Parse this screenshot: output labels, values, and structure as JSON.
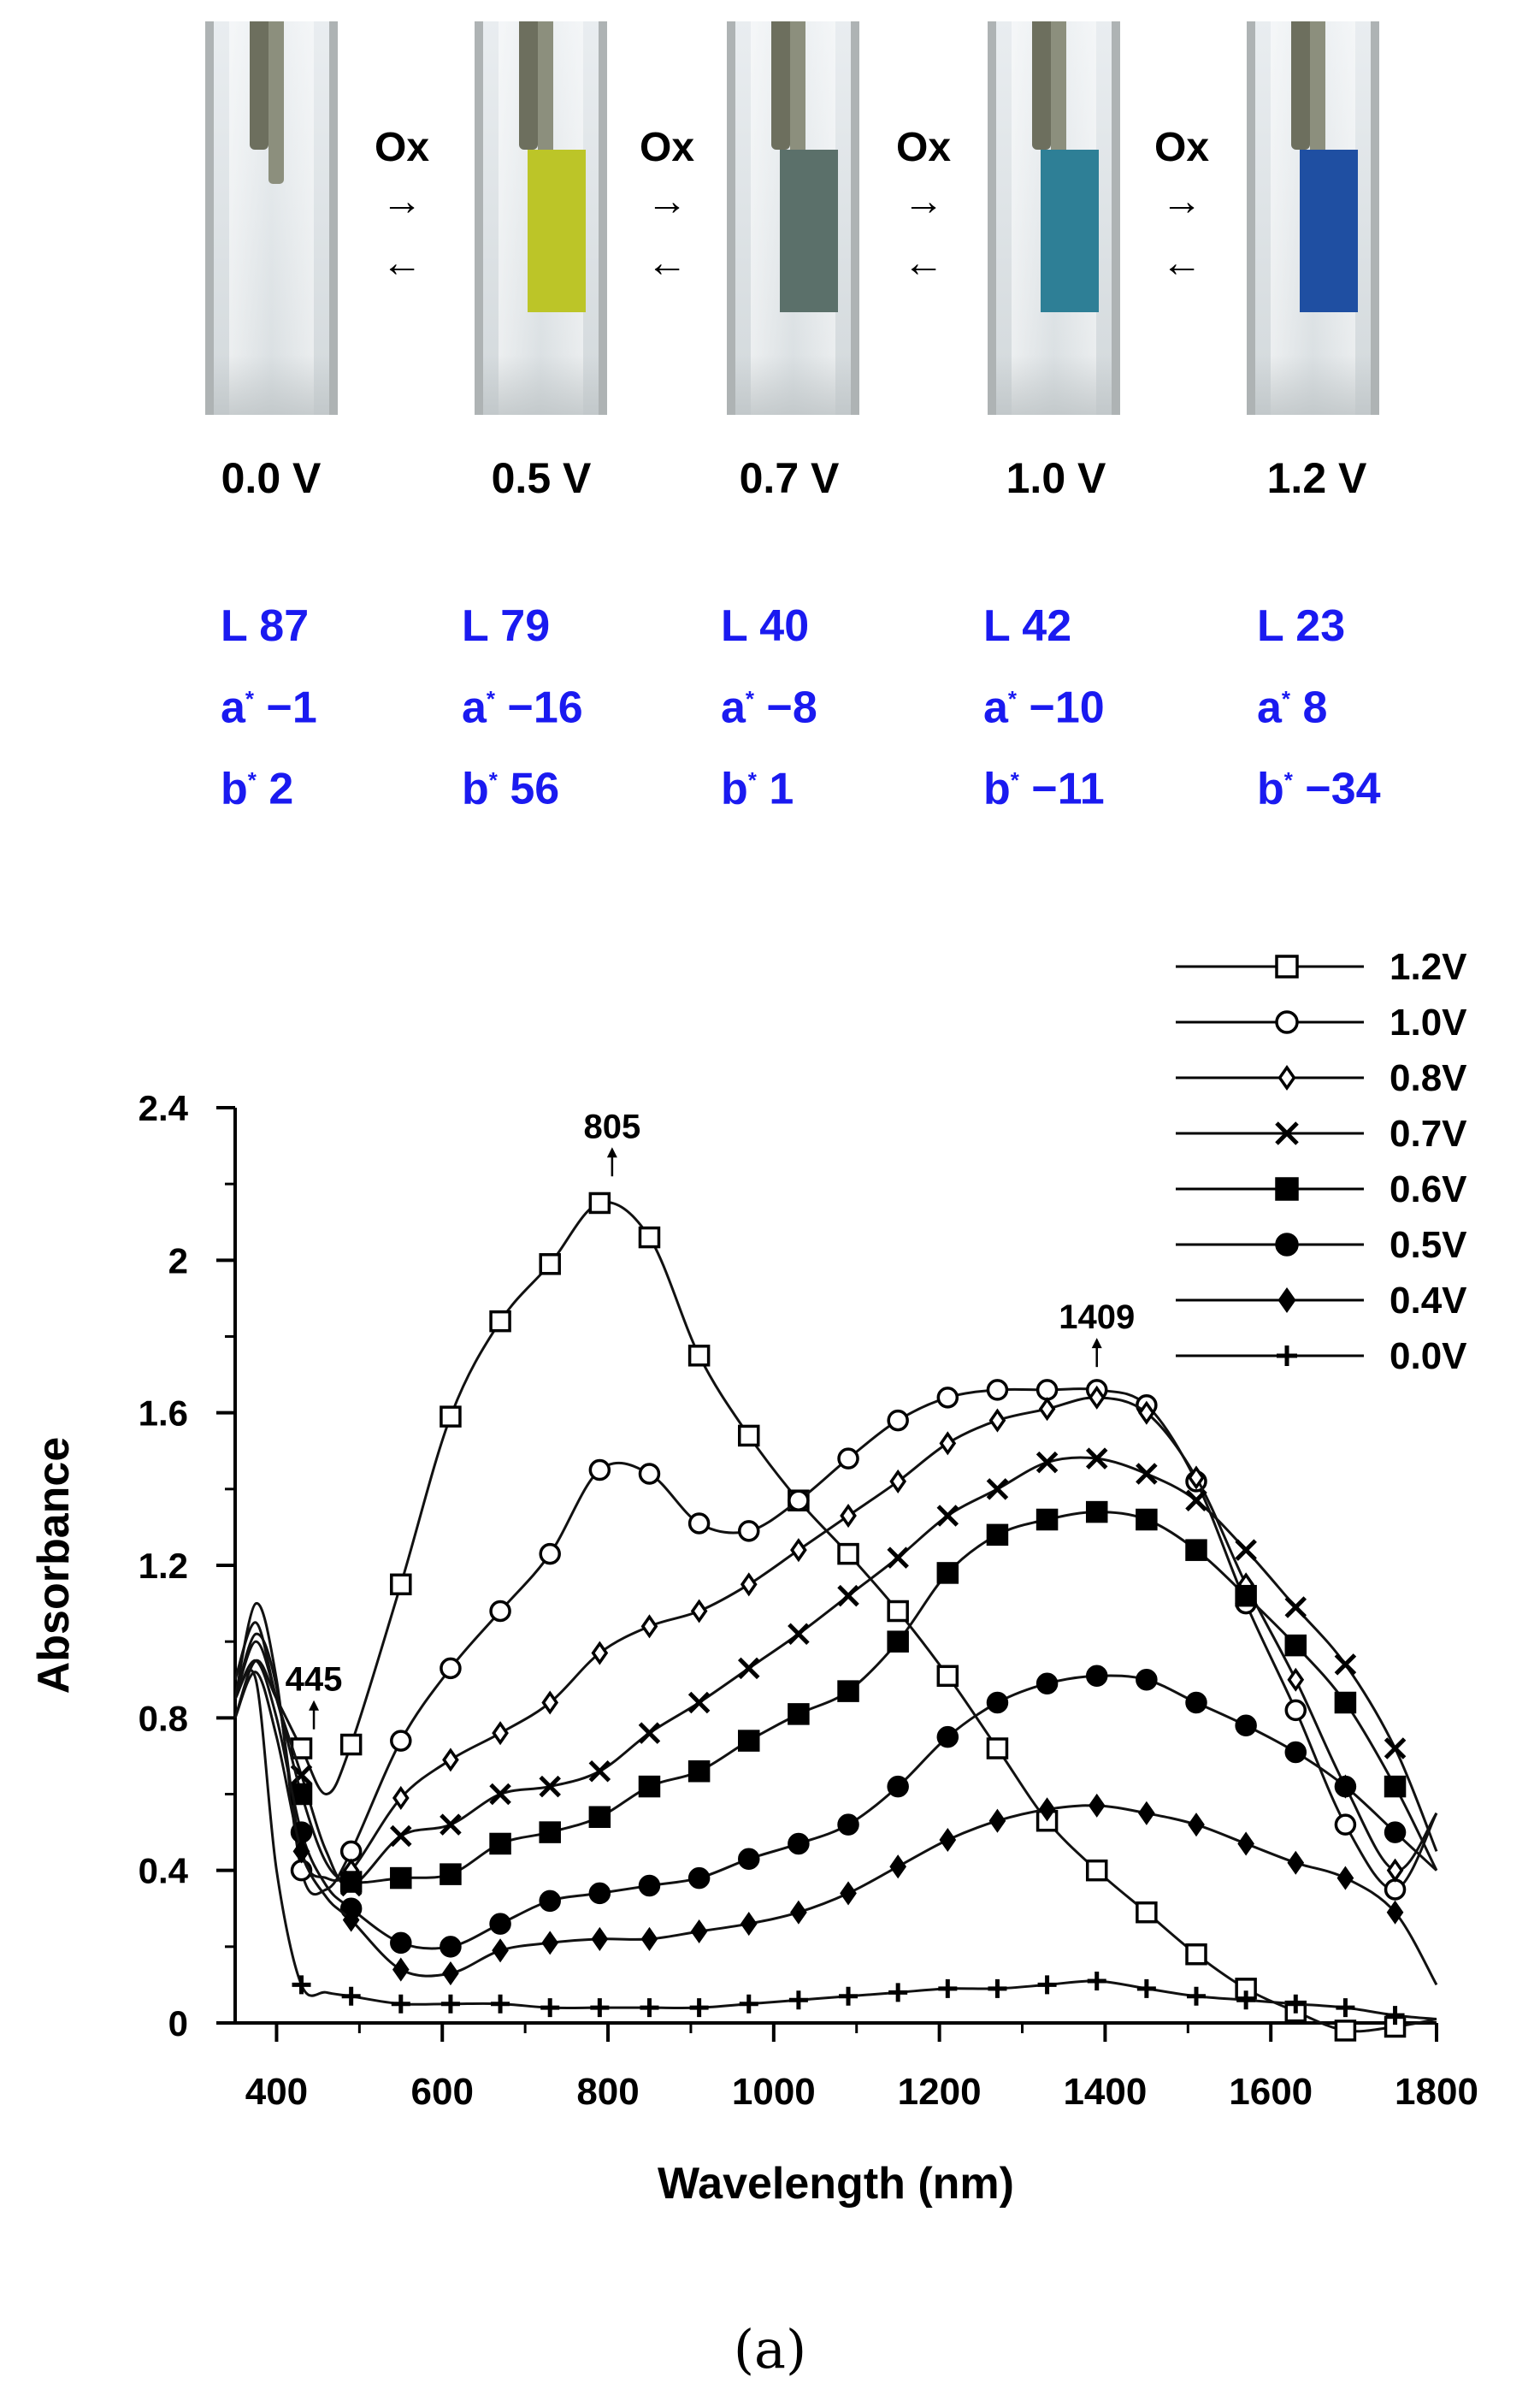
{
  "photos": [
    {
      "voltage": "0.0 V",
      "L": "L 87",
      "a": "−1",
      "b": "2",
      "film_color": "#c9ced0"
    },
    {
      "voltage": "0.5 V",
      "L": "L 79",
      "a": "−16",
      "b": "56",
      "film_color": "#bcc528"
    },
    {
      "voltage": "0.7 V",
      "L": "L 40",
      "a": "−8",
      "b": "1",
      "film_color": "#5b706a"
    },
    {
      "voltage": "1.0 V",
      "L": "L 42",
      "a": "−10",
      "b": "−11",
      "film_color": "#2e7f96"
    },
    {
      "voltage": "1.2 V",
      "L": "L 23",
      "a": "8",
      "b": "−34",
      "film_color": "#1f4fa2"
    }
  ],
  "transitions": {
    "label": "Ox",
    "forward": "→",
    "backward": "←"
  },
  "lab_labels": {
    "a_prefix": "a",
    "b_prefix": "b",
    "star": "*"
  },
  "caption": "(a)",
  "chart_data": {
    "type": "line",
    "xlabel": "Wavelength (nm)",
    "ylabel": "Absorbance",
    "xlim": [
      350,
      1800
    ],
    "ylim": [
      0,
      2.4
    ],
    "xticks": [
      400,
      600,
      800,
      1000,
      1200,
      1400,
      1600,
      1800
    ],
    "yticks": [
      0,
      0.4,
      0.8,
      1.2,
      1.6,
      2,
      2.4
    ],
    "ytick_labels": [
      "0",
      "0.4",
      "0.8",
      "1.2",
      "1.6",
      "2",
      "2.4"
    ],
    "legend_position": "top-right",
    "annotations": [
      {
        "text": "445",
        "x": 445,
        "y": 0.77
      },
      {
        "text": "805",
        "x": 805,
        "y": 2.22
      },
      {
        "text": "1409",
        "x": 1390,
        "y": 1.72
      }
    ],
    "series": [
      {
        "name": "1.2V",
        "marker": "open-square",
        "x": [
          350,
          375,
          400,
          430,
          460,
          490,
          550,
          610,
          670,
          730,
          790,
          850,
          910,
          970,
          1030,
          1090,
          1150,
          1210,
          1270,
          1330,
          1390,
          1450,
          1510,
          1570,
          1630,
          1690,
          1750,
          1800
        ],
        "y": [
          0.8,
          0.95,
          0.85,
          0.72,
          0.6,
          0.73,
          1.15,
          1.59,
          1.84,
          1.99,
          2.15,
          2.06,
          1.75,
          1.54,
          1.37,
          1.23,
          1.08,
          0.91,
          0.72,
          0.53,
          0.4,
          0.29,
          0.18,
          0.09,
          0.03,
          -0.02,
          -0.01,
          0.01
        ]
      },
      {
        "name": "1.0V",
        "marker": "open-circle",
        "x": [
          350,
          375,
          400,
          430,
          460,
          490,
          550,
          610,
          670,
          730,
          790,
          850,
          910,
          970,
          1030,
          1090,
          1150,
          1210,
          1270,
          1330,
          1390,
          1450,
          1510,
          1570,
          1630,
          1690,
          1750,
          1800
        ],
        "y": [
          0.85,
          1.1,
          0.9,
          0.4,
          0.35,
          0.45,
          0.74,
          0.93,
          1.08,
          1.23,
          1.45,
          1.44,
          1.31,
          1.29,
          1.37,
          1.48,
          1.58,
          1.64,
          1.66,
          1.66,
          1.66,
          1.62,
          1.42,
          1.1,
          0.82,
          0.52,
          0.35,
          0.55
        ]
      },
      {
        "name": "0.8V",
        "marker": "open-diamond",
        "x": [
          350,
          375,
          400,
          430,
          460,
          490,
          550,
          610,
          670,
          730,
          790,
          850,
          910,
          970,
          1030,
          1090,
          1150,
          1210,
          1270,
          1330,
          1390,
          1450,
          1510,
          1570,
          1630,
          1690,
          1750,
          1800
        ],
        "y": [
          0.85,
          1.02,
          0.88,
          0.45,
          0.38,
          0.4,
          0.59,
          0.69,
          0.76,
          0.84,
          0.97,
          1.04,
          1.08,
          1.15,
          1.24,
          1.33,
          1.42,
          1.52,
          1.58,
          1.61,
          1.64,
          1.6,
          1.43,
          1.15,
          0.9,
          0.62,
          0.4,
          0.55
        ]
      },
      {
        "name": "0.7V",
        "marker": "x-cross",
        "x": [
          350,
          375,
          400,
          430,
          460,
          490,
          550,
          610,
          670,
          730,
          790,
          850,
          910,
          970,
          1030,
          1090,
          1150,
          1210,
          1270,
          1330,
          1390,
          1450,
          1510,
          1570,
          1630,
          1690,
          1750,
          1800
        ],
        "y": [
          0.9,
          1.05,
          0.85,
          0.65,
          0.45,
          0.36,
          0.49,
          0.52,
          0.6,
          0.62,
          0.66,
          0.76,
          0.84,
          0.93,
          1.02,
          1.12,
          1.22,
          1.33,
          1.4,
          1.47,
          1.48,
          1.44,
          1.37,
          1.24,
          1.09,
          0.94,
          0.72,
          0.45
        ]
      },
      {
        "name": "0.6V",
        "marker": "filled-square",
        "x": [
          350,
          375,
          400,
          430,
          460,
          490,
          550,
          610,
          670,
          730,
          790,
          850,
          910,
          970,
          1030,
          1090,
          1150,
          1210,
          1270,
          1330,
          1390,
          1450,
          1510,
          1570,
          1630,
          1690,
          1750,
          1800
        ],
        "y": [
          0.85,
          1.0,
          0.85,
          0.6,
          0.42,
          0.37,
          0.38,
          0.39,
          0.47,
          0.5,
          0.54,
          0.62,
          0.66,
          0.74,
          0.81,
          0.87,
          1.0,
          1.18,
          1.28,
          1.32,
          1.34,
          1.32,
          1.24,
          1.12,
          0.99,
          0.84,
          0.62,
          0.4
        ]
      },
      {
        "name": "0.5V",
        "marker": "filled-circle",
        "x": [
          350,
          375,
          400,
          430,
          460,
          490,
          550,
          610,
          670,
          730,
          790,
          850,
          910,
          970,
          1030,
          1090,
          1150,
          1210,
          1270,
          1330,
          1390,
          1450,
          1510,
          1570,
          1630,
          1690,
          1750,
          1800
        ],
        "y": [
          0.85,
          0.95,
          0.8,
          0.5,
          0.36,
          0.3,
          0.21,
          0.2,
          0.26,
          0.32,
          0.34,
          0.36,
          0.38,
          0.43,
          0.47,
          0.52,
          0.62,
          0.75,
          0.84,
          0.89,
          0.91,
          0.9,
          0.84,
          0.78,
          0.71,
          0.62,
          0.5,
          0.4
        ]
      },
      {
        "name": "0.4V",
        "marker": "filled-diamond",
        "x": [
          350,
          375,
          400,
          430,
          460,
          490,
          550,
          610,
          670,
          730,
          790,
          850,
          910,
          970,
          1030,
          1090,
          1150,
          1210,
          1270,
          1330,
          1390,
          1450,
          1510,
          1570,
          1630,
          1690,
          1750,
          1800
        ],
        "y": [
          0.8,
          0.92,
          0.75,
          0.45,
          0.33,
          0.27,
          0.14,
          0.13,
          0.19,
          0.21,
          0.22,
          0.22,
          0.24,
          0.26,
          0.29,
          0.34,
          0.41,
          0.48,
          0.53,
          0.56,
          0.57,
          0.55,
          0.52,
          0.47,
          0.42,
          0.38,
          0.29,
          0.1
        ]
      },
      {
        "name": "0.0V",
        "marker": "plus",
        "x": [
          350,
          375,
          400,
          430,
          460,
          490,
          550,
          610,
          670,
          730,
          790,
          850,
          910,
          970,
          1030,
          1090,
          1150,
          1210,
          1270,
          1330,
          1390,
          1450,
          1510,
          1570,
          1630,
          1690,
          1750,
          1800
        ],
        "y": [
          0.85,
          0.9,
          0.4,
          0.1,
          0.08,
          0.07,
          0.05,
          0.05,
          0.05,
          0.04,
          0.04,
          0.04,
          0.04,
          0.05,
          0.06,
          0.07,
          0.08,
          0.09,
          0.09,
          0.1,
          0.11,
          0.09,
          0.07,
          0.06,
          0.05,
          0.04,
          0.02,
          0.01
        ]
      }
    ]
  }
}
